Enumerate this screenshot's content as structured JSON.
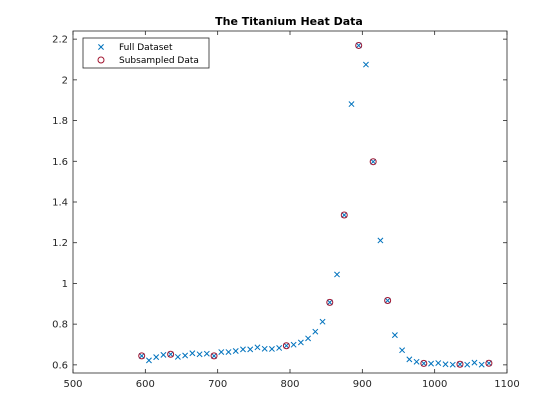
{
  "chart_data": {
    "type": "scatter",
    "title": "The Titanium Heat Data",
    "xlabel": "",
    "ylabel": "",
    "xlim": [
      500,
      1100
    ],
    "ylim": [
      0.56,
      2.24
    ],
    "xticks": [
      500,
      600,
      700,
      800,
      900,
      1000,
      1100
    ],
    "yticks": [
      0.6,
      0.8,
      1,
      1.2,
      1.4,
      1.6,
      1.8,
      2,
      2.2
    ],
    "grid": false,
    "legend": {
      "placement": "top-left"
    },
    "series": [
      {
        "name": "Full Dataset",
        "marker": "x",
        "color": "#0072BD",
        "x": [
          595,
          605,
          615,
          625,
          635,
          645,
          655,
          665,
          675,
          685,
          695,
          705,
          715,
          725,
          735,
          745,
          755,
          765,
          775,
          785,
          795,
          805,
          815,
          825,
          835,
          845,
          855,
          865,
          875,
          885,
          895,
          905,
          915,
          925,
          935,
          945,
          955,
          965,
          975,
          985,
          995,
          1005,
          1015,
          1025,
          1035,
          1045,
          1055,
          1065,
          1075
        ],
        "y": [
          0.644,
          0.622,
          0.638,
          0.649,
          0.652,
          0.639,
          0.646,
          0.657,
          0.652,
          0.655,
          0.644,
          0.663,
          0.663,
          0.668,
          0.676,
          0.676,
          0.686,
          0.679,
          0.678,
          0.683,
          0.694,
          0.699,
          0.71,
          0.73,
          0.763,
          0.812,
          0.907,
          1.044,
          1.336,
          1.881,
          2.169,
          2.075,
          1.598,
          1.211,
          0.916,
          0.746,
          0.672,
          0.627,
          0.615,
          0.607,
          0.606,
          0.609,
          0.603,
          0.601,
          0.603,
          0.601,
          0.611,
          0.601,
          0.608
        ]
      },
      {
        "name": "Subsampled Data",
        "marker": "o",
        "color": "#A2142F",
        "x": [
          595,
          635,
          695,
          795,
          855,
          875,
          895,
          915,
          935,
          985,
          1035,
          1075
        ],
        "y": [
          0.644,
          0.652,
          0.644,
          0.694,
          0.907,
          1.336,
          2.169,
          1.598,
          0.916,
          0.607,
          0.603,
          0.608
        ]
      }
    ]
  }
}
